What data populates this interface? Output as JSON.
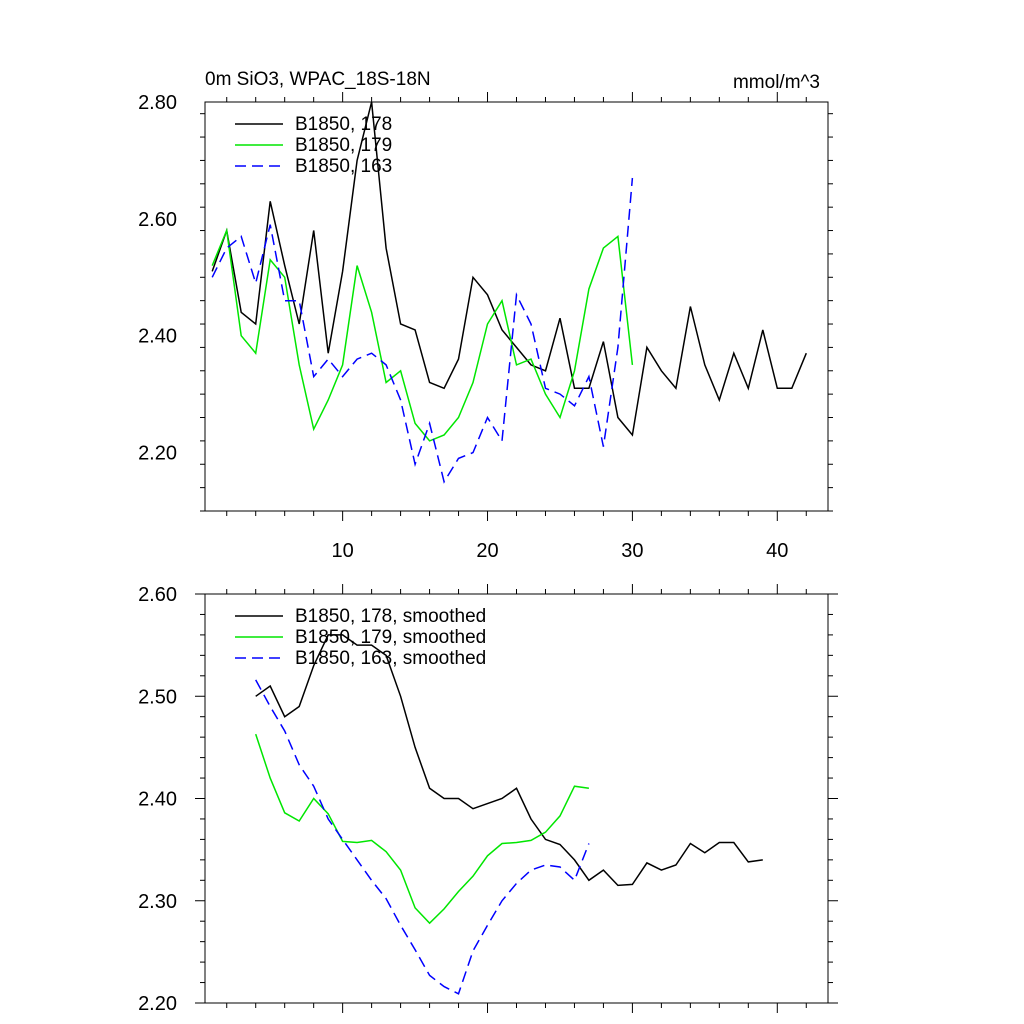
{
  "chart_data": [
    {
      "type": "line",
      "title": "0m SiO3, WPAC_18S-18N",
      "units": "mmol/m^3",
      "xlim": [
        0.5,
        43.5
      ],
      "ylim": [
        2.1,
        2.8
      ],
      "yticks": [
        "2.20",
        "2.40",
        "2.60",
        "2.80"
      ],
      "ytick_values": [
        2.2,
        2.4,
        2.6,
        2.8
      ],
      "xticks": [
        "10",
        "20",
        "30",
        "40"
      ],
      "xtick_values": [
        10,
        20,
        30,
        40
      ],
      "show_xtick_labels": true,
      "legend_position": "top-left",
      "series": [
        {
          "name": "B1850, 178",
          "color": "#000000",
          "dash": "solid",
          "x": [
            1,
            2,
            3,
            4,
            5,
            6,
            7,
            8,
            9,
            10,
            11,
            12,
            13,
            14,
            15,
            16,
            17,
            18,
            19,
            20,
            21,
            22,
            23,
            24,
            25,
            26,
            27,
            28,
            29,
            30,
            31,
            32,
            33,
            34,
            35,
            36,
            37,
            38,
            39,
            40,
            41,
            42
          ],
          "y": [
            2.51,
            2.58,
            2.44,
            2.42,
            2.63,
            2.52,
            2.42,
            2.58,
            2.37,
            2.51,
            2.7,
            2.8,
            2.55,
            2.42,
            2.41,
            2.32,
            2.31,
            2.36,
            2.5,
            2.47,
            2.41,
            2.38,
            2.35,
            2.34,
            2.43,
            2.31,
            2.31,
            2.39,
            2.26,
            2.23,
            2.38,
            2.34,
            2.31,
            2.45,
            2.35,
            2.29,
            2.37,
            2.31,
            2.41,
            2.31,
            2.31,
            2.37
          ]
        },
        {
          "name": "B1850, 179",
          "color": "#00e600",
          "dash": "solid",
          "x": [
            1,
            2,
            3,
            4,
            5,
            6,
            7,
            8,
            9,
            10,
            11,
            12,
            13,
            14,
            15,
            16,
            17,
            18,
            19,
            20,
            21,
            22,
            23,
            24,
            25,
            26,
            27,
            28,
            29,
            30
          ],
          "y": [
            2.52,
            2.58,
            2.4,
            2.37,
            2.53,
            2.5,
            2.35,
            2.24,
            2.29,
            2.35,
            2.52,
            2.44,
            2.32,
            2.34,
            2.25,
            2.22,
            2.23,
            2.26,
            2.32,
            2.42,
            2.46,
            2.35,
            2.36,
            2.3,
            2.26,
            2.34,
            2.48,
            2.55,
            2.57,
            2.35
          ]
        },
        {
          "name": "B1850, 163",
          "color": "#0000ff",
          "dash": "dashed",
          "x": [
            1,
            2,
            3,
            4,
            5,
            6,
            7,
            8,
            9,
            10,
            11,
            12,
            13,
            14,
            15,
            16,
            17,
            18,
            19,
            20,
            21,
            22,
            23,
            24,
            25,
            26,
            27,
            28,
            29,
            30
          ],
          "y": [
            2.5,
            2.55,
            2.57,
            2.49,
            2.59,
            2.46,
            2.46,
            2.33,
            2.36,
            2.33,
            2.36,
            2.37,
            2.35,
            2.29,
            2.18,
            2.25,
            2.15,
            2.19,
            2.2,
            2.26,
            2.22,
            2.47,
            2.42,
            2.31,
            2.3,
            2.28,
            2.33,
            2.21,
            2.38,
            2.67
          ]
        }
      ]
    },
    {
      "type": "line",
      "title": "",
      "units": "",
      "xlim": [
        0.5,
        43.5
      ],
      "ylim": [
        2.2,
        2.6
      ],
      "yticks": [
        "2.20",
        "2.30",
        "2.40",
        "2.50",
        "2.60"
      ],
      "ytick_values": [
        2.2,
        2.3,
        2.4,
        2.5,
        2.6
      ],
      "xticks": [
        "10",
        "20",
        "30",
        "40"
      ],
      "xtick_values": [
        10,
        20,
        30,
        40
      ],
      "show_xtick_labels": false,
      "legend_position": "top-left",
      "series": [
        {
          "name": "B1850, 178, smoothed",
          "color": "#000000",
          "dash": "solid",
          "x": [
            4,
            5,
            6,
            7,
            8,
            9,
            10,
            11,
            12,
            13,
            14,
            15,
            16,
            17,
            18,
            19,
            20,
            21,
            22,
            23,
            24,
            25,
            26,
            27,
            28,
            29,
            30,
            31,
            32,
            33,
            34,
            35,
            36,
            37,
            38,
            39
          ],
          "y": [
            2.5,
            2.51,
            2.48,
            2.49,
            2.53,
            2.56,
            2.56,
            2.55,
            2.55,
            2.54,
            2.5,
            2.45,
            2.41,
            2.4,
            2.4,
            2.39,
            2.395,
            2.4,
            2.41,
            2.38,
            2.36,
            2.355,
            2.34,
            2.32,
            2.33,
            2.315,
            2.316,
            2.337,
            2.33,
            2.335,
            2.356,
            2.347,
            2.357,
            2.357,
            2.338,
            2.34
          ]
        },
        {
          "name": "B1850, 179, smoothed",
          "color": "#00e600",
          "dash": "solid",
          "x": [
            4,
            5,
            6,
            7,
            8,
            9,
            10,
            11,
            12,
            13,
            14,
            15,
            16,
            17,
            18,
            19,
            20,
            21,
            22,
            23,
            24,
            25,
            26,
            27
          ],
          "y": [
            2.463,
            2.42,
            2.386,
            2.378,
            2.4,
            2.385,
            2.358,
            2.357,
            2.359,
            2.348,
            2.33,
            2.293,
            2.278,
            2.292,
            2.309,
            2.324,
            2.344,
            2.356,
            2.357,
            2.359,
            2.367,
            2.383,
            2.412,
            2.41
          ]
        },
        {
          "name": "B1850, 163, smoothed",
          "color": "#0000ff",
          "dash": "dashed",
          "x": [
            4,
            5,
            6,
            7,
            8,
            9,
            10,
            11,
            12,
            13,
            14,
            15,
            16,
            17,
            18,
            19,
            20,
            21,
            22,
            23,
            24,
            25,
            26,
            27
          ],
          "y": [
            2.516,
            2.49,
            2.466,
            2.433,
            2.412,
            2.38,
            2.36,
            2.34,
            2.32,
            2.302,
            2.276,
            2.252,
            2.227,
            2.216,
            2.209,
            2.251,
            2.276,
            2.3,
            2.317,
            2.33,
            2.335,
            2.333,
            2.32,
            2.356
          ]
        }
      ]
    }
  ]
}
